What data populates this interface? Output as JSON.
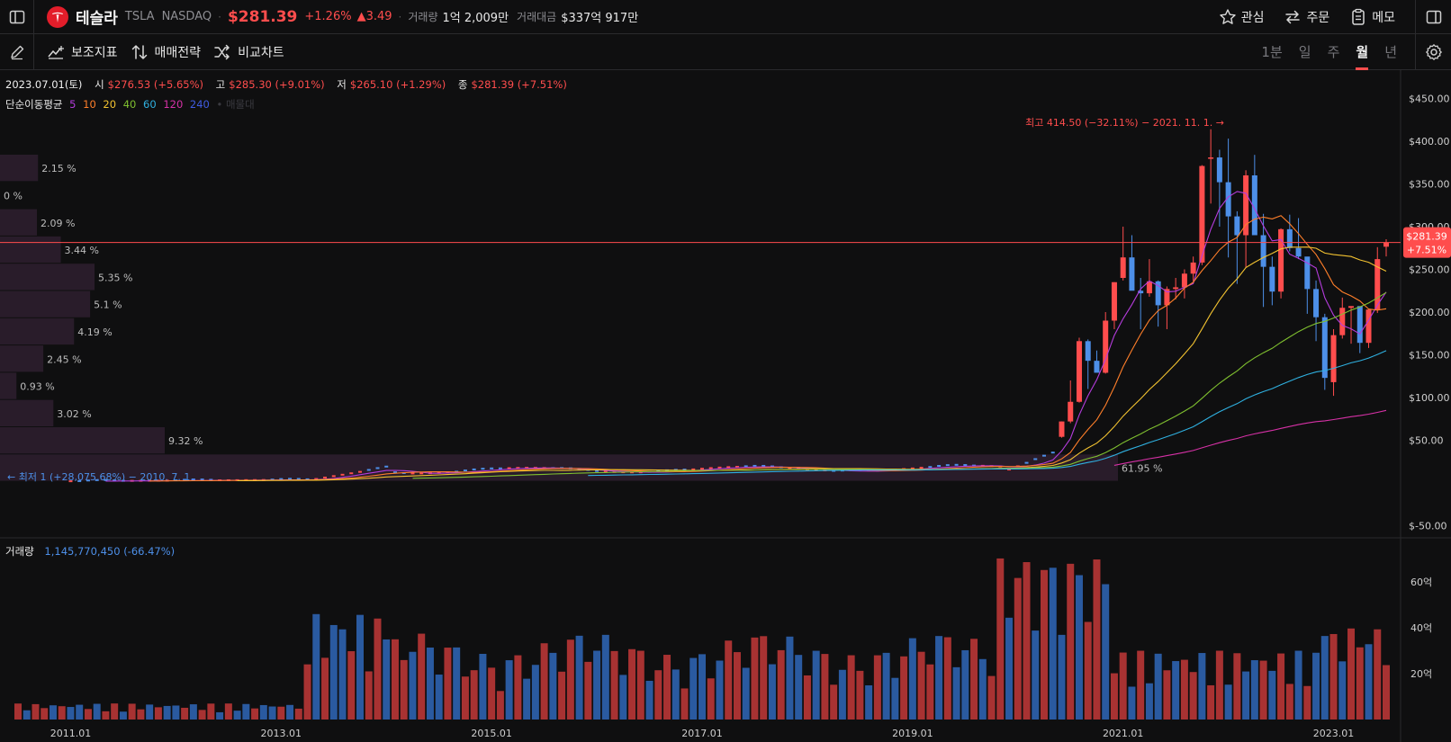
{
  "header": {
    "name": "테슬라",
    "ticker": "TSLA",
    "exchange": "NASDAQ",
    "price": "$281.39",
    "change_pct": "+1.26%",
    "change_abs": "▲3.49",
    "volume_label": "거래량",
    "volume_value": "1억 2,009만",
    "turnover_label": "거래대금",
    "turnover_value": "$337억 917만",
    "watch_label": "관심",
    "order_label": "주문",
    "memo_label": "메모"
  },
  "toolbar": {
    "indicators_label": "보조지표",
    "strategy_label": "매매전략",
    "compare_label": "비교차트",
    "periods": [
      "1분",
      "일",
      "주",
      "월",
      "년"
    ],
    "active_period": "월"
  },
  "ohlc": {
    "date": "2023.07.01(토)",
    "open_label": "시",
    "open": "$276.53 (+5.65%)",
    "high_label": "고",
    "high": "$285.30 (+9.01%)",
    "low_label": "저",
    "low": "$265.10 (+1.29%)",
    "close_label": "종",
    "close": "$281.39 (+7.51%)"
  },
  "ma_legend": {
    "title": "단순이동평균",
    "periods": [
      "5",
      "10",
      "20",
      "40",
      "60",
      "120",
      "240"
    ],
    "colors": [
      "#b43cdc",
      "#ff7f2a",
      "#f2c230",
      "#7fbf2f",
      "#2fb0e0",
      "#d631a6",
      "#3f5be0"
    ],
    "extra": "• 매물대"
  },
  "volume_legend": {
    "label": "거래량",
    "value": "1,145,770,450 (-66.47%)"
  },
  "colors": {
    "up": "#ff4d4d",
    "down": "#4d8fe8",
    "vol_up": "#a83232",
    "vol_down": "#2a5aa0",
    "price_line": "#ff4d4d"
  },
  "chart_data": [
    {
      "type": "candlestick",
      "interval": "monthly",
      "y_axis_ticks": [
        "$450.00",
        "$400.00",
        "$350.00",
        "$300.00",
        "$250.00",
        "$200.00",
        "$150.00",
        "$100.00",
        "$50.00",
        "$-50.00"
      ],
      "ylim": [
        -50,
        460
      ],
      "x_axis_ticks": [
        "2011.01",
        "2013.01",
        "2015.01",
        "2017.01",
        "2019.01",
        "2021.01",
        "2023.01"
      ],
      "current_price_label": "$281.39",
      "current_change_label": "+7.51%",
      "current_price": 281.39,
      "high_annotation": "최고 414.50 (−32.11%) − 2021. 11. 1. →",
      "low_annotation": "← 최저 1 (+28,075.68%) − 2010. 7. 1.",
      "volume_profile": [
        {
          "pct": "2.15 %",
          "share": 2.15
        },
        {
          "pct": "0 %",
          "share": 0
        },
        {
          "pct": "2.09 %",
          "share": 2.09
        },
        {
          "pct": "3.44 %",
          "share": 3.44
        },
        {
          "pct": "5.35 %",
          "share": 5.35
        },
        {
          "pct": "5.1 %",
          "share": 5.1
        },
        {
          "pct": "4.19 %",
          "share": 4.19
        },
        {
          "pct": "2.45 %",
          "share": 2.45
        },
        {
          "pct": "0.93 %",
          "share": 0.93
        },
        {
          "pct": "3.02 %",
          "share": 3.02
        },
        {
          "pct": "9.32 %",
          "share": 9.32
        },
        {
          "pct": "61.95 %",
          "share": 61.95
        }
      ],
      "recent_candles": [
        {
          "date": "2020-06",
          "o": 54,
          "h": 72,
          "l": 53,
          "c": 72
        },
        {
          "date": "2020-07",
          "o": 72,
          "h": 120,
          "l": 70,
          "c": 95
        },
        {
          "date": "2020-08",
          "o": 95,
          "h": 170,
          "l": 94,
          "c": 166
        },
        {
          "date": "2020-09",
          "o": 166,
          "h": 168,
          "l": 110,
          "c": 143
        },
        {
          "date": "2020-10",
          "o": 143,
          "h": 155,
          "l": 130,
          "c": 129
        },
        {
          "date": "2020-11",
          "o": 129,
          "h": 200,
          "l": 128,
          "c": 190
        },
        {
          "date": "2020-12",
          "o": 190,
          "h": 235,
          "l": 180,
          "c": 235
        },
        {
          "date": "2021-01",
          "o": 240,
          "h": 300,
          "l": 237,
          "c": 264
        },
        {
          "date": "2021-02",
          "o": 264,
          "h": 290,
          "l": 227,
          "c": 225
        },
        {
          "date": "2021-03",
          "o": 225,
          "h": 240,
          "l": 180,
          "c": 222
        },
        {
          "date": "2021-04",
          "o": 222,
          "h": 262,
          "l": 218,
          "c": 236
        },
        {
          "date": "2021-05",
          "o": 236,
          "h": 237,
          "l": 183,
          "c": 208
        },
        {
          "date": "2021-06",
          "o": 208,
          "h": 230,
          "l": 180,
          "c": 227
        },
        {
          "date": "2021-07",
          "o": 227,
          "h": 240,
          "l": 215,
          "c": 229
        },
        {
          "date": "2021-08",
          "o": 229,
          "h": 250,
          "l": 216,
          "c": 245
        },
        {
          "date": "2021-09",
          "o": 245,
          "h": 265,
          "l": 236,
          "c": 258
        },
        {
          "date": "2021-10",
          "o": 258,
          "h": 372,
          "l": 255,
          "c": 371
        },
        {
          "date": "2021-11",
          "o": 381,
          "h": 414,
          "l": 327,
          "c": 381
        },
        {
          "date": "2021-12",
          "o": 381,
          "h": 390,
          "l": 300,
          "c": 352
        },
        {
          "date": "2022-01",
          "o": 352,
          "h": 403,
          "l": 264,
          "c": 312
        },
        {
          "date": "2022-02",
          "o": 312,
          "h": 318,
          "l": 233,
          "c": 290
        },
        {
          "date": "2022-03",
          "o": 290,
          "h": 366,
          "l": 252,
          "c": 360
        },
        {
          "date": "2022-04",
          "o": 360,
          "h": 384,
          "l": 290,
          "c": 290
        },
        {
          "date": "2022-05",
          "o": 290,
          "h": 315,
          "l": 206,
          "c": 253
        },
        {
          "date": "2022-06",
          "o": 253,
          "h": 265,
          "l": 208,
          "c": 224
        },
        {
          "date": "2022-07",
          "o": 224,
          "h": 298,
          "l": 216,
          "c": 297
        },
        {
          "date": "2022-08",
          "o": 297,
          "h": 314,
          "l": 271,
          "c": 275
        },
        {
          "date": "2022-09",
          "o": 275,
          "h": 310,
          "l": 262,
          "c": 265
        },
        {
          "date": "2022-10",
          "o": 265,
          "h": 257,
          "l": 198,
          "c": 227
        },
        {
          "date": "2022-11",
          "o": 227,
          "h": 237,
          "l": 166,
          "c": 194
        },
        {
          "date": "2022-12",
          "o": 194,
          "h": 198,
          "l": 109,
          "c": 123
        },
        {
          "date": "2023-01",
          "o": 118,
          "h": 180,
          "l": 102,
          "c": 173
        },
        {
          "date": "2023-02",
          "o": 173,
          "h": 217,
          "l": 169,
          "c": 205
        },
        {
          "date": "2023-03",
          "o": 205,
          "h": 207,
          "l": 163,
          "c": 207
        },
        {
          "date": "2023-04",
          "o": 207,
          "h": 202,
          "l": 152,
          "c": 164
        },
        {
          "date": "2023-05",
          "o": 164,
          "h": 204,
          "l": 158,
          "c": 203
        },
        {
          "date": "2023-06",
          "o": 203,
          "h": 276,
          "l": 199,
          "c": 262
        },
        {
          "date": "2023-07",
          "o": 276.53,
          "h": 285.3,
          "l": 265.1,
          "c": 281.39
        }
      ]
    },
    {
      "type": "bar",
      "name": "volume",
      "y_axis_ticks": [
        "60억",
        "40억",
        "20억"
      ],
      "ylim": [
        0,
        7.6
      ]
    }
  ]
}
